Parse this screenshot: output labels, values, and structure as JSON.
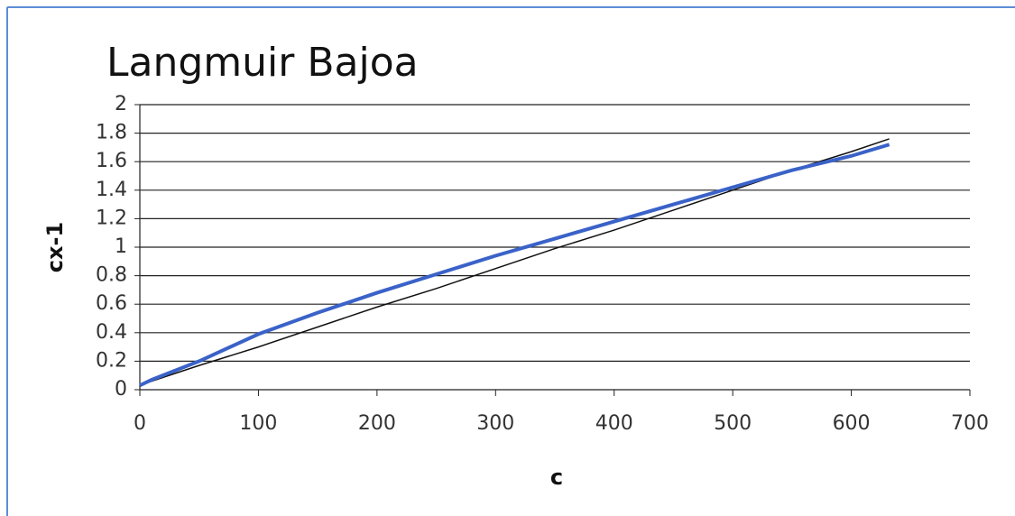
{
  "chart_data": {
    "type": "line",
    "title": "Langmuir Bajoa",
    "xlabel": "c",
    "ylabel": "cx-1",
    "x": [
      0,
      10,
      50,
      100,
      150,
      200,
      250,
      300,
      350,
      400,
      450,
      500,
      550,
      600,
      632
    ],
    "series": [
      {
        "color": "#3a62c8",
        "values": [
          0.03,
          0.07,
          0.2,
          0.39,
          0.54,
          0.68,
          0.81,
          0.94,
          1.06,
          1.18,
          1.3,
          1.42,
          1.54,
          1.64,
          1.72
        ]
      },
      {
        "color": "#111111",
        "values": [
          0.03,
          0.06,
          0.17,
          0.3,
          0.44,
          0.58,
          0.71,
          0.85,
          0.99,
          1.12,
          1.26,
          1.4,
          1.54,
          1.67,
          1.76
        ]
      }
    ],
    "xlim": [
      0,
      700
    ],
    "xticks": [
      0,
      100,
      200,
      300,
      400,
      500,
      600,
      700
    ],
    "ylim": [
      0,
      2
    ],
    "yticks": [
      0,
      0.2,
      0.4,
      0.6,
      0.8,
      1,
      1.2,
      1.4,
      1.6,
      1.8,
      2
    ],
    "grid": true
  }
}
